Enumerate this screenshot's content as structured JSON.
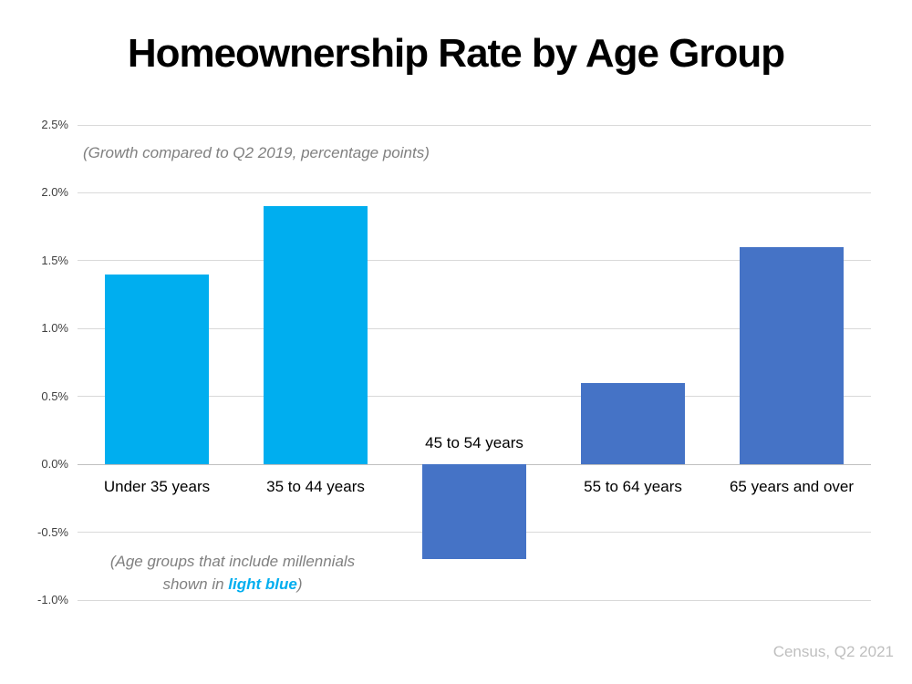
{
  "title": "Homeownership Rate by Age Group",
  "subtitle": "(Growth compared to Q2 2019, percentage points)",
  "note": {
    "line1": "(Age groups that include millennials",
    "line2_prefix": "shown in ",
    "line2_highlight": "light blue",
    "line2_suffix": ")"
  },
  "source": "Census, Q2 2021",
  "colors": {
    "millennial_bar": "#00AEEF",
    "other_bar": "#4573C6",
    "gridline": "#D9D9D9",
    "axis_line": "#BFBFBF",
    "subtitle_text": "#808080",
    "source_text": "#BFBFBF",
    "tick_text": "#404040"
  },
  "chart_data": {
    "type": "bar",
    "title": "Homeownership Rate by Age Group",
    "subtitle": "(Growth compared to Q2 2019, percentage points)",
    "categories": [
      "Under 35 years",
      "35 to 44 years",
      "45 to 54 years",
      "55 to 64 years",
      "65 years and over"
    ],
    "values": [
      1.4,
      1.9,
      -0.7,
      0.6,
      1.6
    ],
    "millennial_series": [
      true,
      true,
      false,
      false,
      false
    ],
    "xlabel": "",
    "ylabel": "",
    "ylim": [
      -1.0,
      2.5
    ],
    "ytick_step": 0.5,
    "ytick_format": "0.0%",
    "grid": true,
    "legend": "none",
    "annotation": "(Age groups that include millennials shown in light blue)",
    "source": "Census, Q2 2021"
  }
}
